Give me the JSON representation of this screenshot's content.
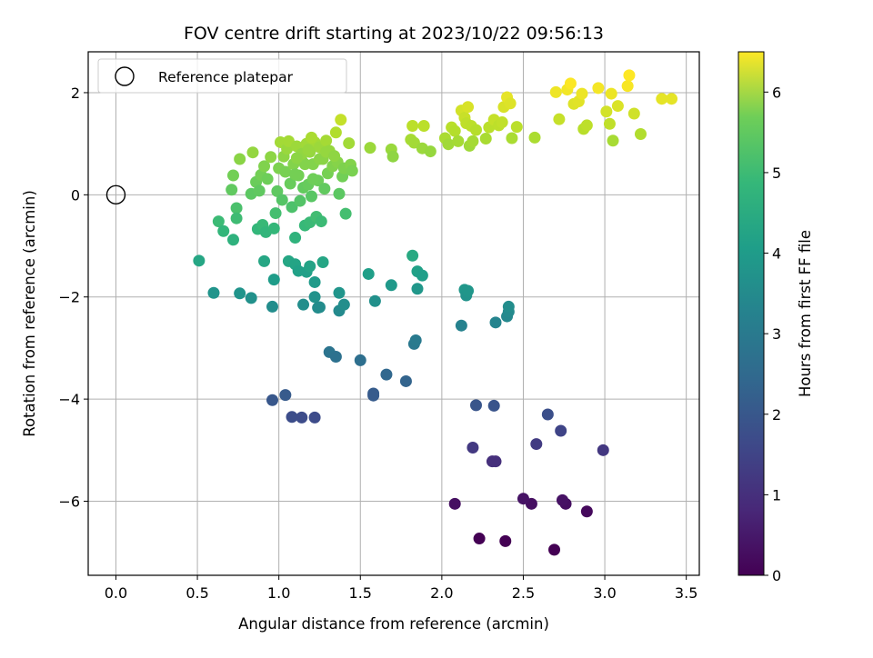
{
  "chart_data": {
    "type": "scatter",
    "title": "FOV centre drift starting at 2023/10/22 09:56:13",
    "xlabel": "Angular distance from reference (arcmin)",
    "ylabel": "Rotation from reference (arcmin)",
    "xlim": [
      -0.17,
      3.58
    ],
    "ylim": [
      -7.45,
      2.8
    ],
    "x_ticks": [
      0.0,
      0.5,
      1.0,
      1.5,
      2.0,
      2.5,
      3.0,
      3.5
    ],
    "x_tick_labels": [
      "0.0",
      "0.5",
      "1.0",
      "1.5",
      "2.0",
      "2.5",
      "3.0",
      "3.5"
    ],
    "y_ticks": [
      2,
      0,
      -2,
      -4,
      -6
    ],
    "y_tick_labels": [
      "2",
      "0",
      "−2",
      "−4",
      "−6"
    ],
    "grid": true,
    "legend": {
      "position": "top-left",
      "entries": [
        {
          "label": "Reference platepar",
          "marker": "open-circle"
        }
      ]
    },
    "reference_point": {
      "x": 0.0,
      "y": 0.0
    },
    "colorbar": {
      "label": "Hours from first FF file",
      "min": 0,
      "max": 6.5,
      "ticks": [
        0,
        1,
        2,
        3,
        4,
        5,
        6
      ],
      "tick_labels": [
        "0",
        "1",
        "2",
        "3",
        "4",
        "5",
        "6"
      ],
      "colormap": "viridis"
    },
    "series": [
      {
        "points": [
          [
            2.69,
            -6.95
          ],
          [
            2.89,
            -6.2
          ],
          [
            2.76,
            -6.05
          ],
          [
            2.74,
            -5.98
          ],
          [
            2.55,
            -6.05
          ],
          [
            2.5,
            -5.95
          ],
          [
            2.08,
            -6.05
          ],
          [
            2.39,
            -6.78
          ],
          [
            2.23,
            -6.73
          ],
          [
            2.31,
            -5.22
          ],
          [
            2.33,
            -5.22
          ],
          [
            2.19,
            -4.95
          ],
          [
            2.58,
            -4.88
          ],
          [
            2.73,
            -4.62
          ],
          [
            2.65,
            -4.3
          ],
          [
            2.99,
            -5.0
          ],
          [
            2.21,
            -4.12
          ],
          [
            2.32,
            -4.13
          ],
          [
            0.96,
            -4.02
          ],
          [
            1.04,
            -3.92
          ],
          [
            1.08,
            -4.35
          ],
          [
            1.14,
            -4.36
          ],
          [
            1.22,
            -4.36
          ],
          [
            1.31,
            -3.08
          ],
          [
            1.35,
            -3.17
          ],
          [
            1.5,
            -3.24
          ],
          [
            1.58,
            -3.89
          ],
          [
            1.58,
            -3.93
          ],
          [
            1.66,
            -3.52
          ],
          [
            1.78,
            -3.65
          ],
          [
            1.83,
            -2.92
          ],
          [
            1.84,
            -2.85
          ],
          [
            0.51,
            -1.29
          ],
          [
            0.6,
            -1.92
          ],
          [
            0.76,
            -1.93
          ],
          [
            0.83,
            -2.02
          ],
          [
            0.91,
            -1.3
          ],
          [
            0.96,
            -2.19
          ],
          [
            0.97,
            -1.66
          ],
          [
            1.06,
            -1.3
          ],
          [
            1.1,
            -1.36
          ],
          [
            1.12,
            -1.49
          ],
          [
            1.17,
            -1.51
          ],
          [
            1.19,
            -1.4
          ],
          [
            1.15,
            -2.15
          ],
          [
            1.22,
            -2.0
          ],
          [
            1.22,
            -1.71
          ],
          [
            1.24,
            -2.21
          ],
          [
            1.25,
            -2.2
          ],
          [
            1.27,
            -1.32
          ],
          [
            1.37,
            -1.92
          ],
          [
            1.37,
            -2.27
          ],
          [
            1.4,
            -2.15
          ],
          [
            1.55,
            -1.55
          ],
          [
            1.59,
            -2.08
          ],
          [
            1.69,
            -1.77
          ],
          [
            1.82,
            -1.19
          ],
          [
            1.85,
            -1.84
          ],
          [
            1.85,
            -1.5
          ],
          [
            1.88,
            -1.58
          ],
          [
            2.12,
            -2.56
          ],
          [
            2.14,
            -1.86
          ],
          [
            2.15,
            -1.97
          ],
          [
            2.16,
            -1.88
          ],
          [
            2.33,
            -2.5
          ],
          [
            2.4,
            -2.38
          ],
          [
            2.41,
            -2.29
          ],
          [
            2.41,
            -2.19
          ],
          [
            0.63,
            -0.52
          ],
          [
            0.66,
            -0.71
          ],
          [
            0.72,
            -0.88
          ],
          [
            0.74,
            -0.26
          ],
          [
            0.74,
            -0.46
          ],
          [
            0.71,
            0.1
          ],
          [
            0.72,
            0.38
          ],
          [
            0.76,
            0.7
          ],
          [
            0.83,
            0.02
          ],
          [
            0.84,
            0.83
          ],
          [
            0.86,
            0.25
          ],
          [
            0.87,
            -0.67
          ],
          [
            0.88,
            0.08
          ],
          [
            0.89,
            0.39
          ],
          [
            0.9,
            -0.59
          ],
          [
            0.91,
            0.56
          ],
          [
            0.92,
            -0.73
          ],
          [
            0.93,
            0.31
          ],
          [
            0.95,
            0.74
          ],
          [
            0.97,
            -0.66
          ],
          [
            0.98,
            -0.36
          ],
          [
            0.99,
            0.07
          ],
          [
            1.0,
            0.52
          ],
          [
            1.01,
            1.03
          ],
          [
            1.02,
            -0.1
          ],
          [
            1.03,
            0.75
          ],
          [
            1.04,
            0.45
          ],
          [
            1.05,
            0.9
          ],
          [
            1.06,
            1.05
          ],
          [
            1.07,
            0.22
          ],
          [
            1.08,
            -0.24
          ],
          [
            1.09,
            0.6
          ],
          [
            1.1,
            -0.84
          ],
          [
            1.11,
            0.95
          ],
          [
            1.12,
            0.38
          ],
          [
            1.13,
            -0.12
          ],
          [
            1.14,
            0.68
          ],
          [
            1.15,
            0.14
          ],
          [
            1.16,
            -0.6
          ],
          [
            1.17,
            1.0
          ],
          [
            1.18,
            0.2
          ],
          [
            1.19,
            -0.54
          ],
          [
            1.19,
            0.84
          ],
          [
            1.2,
            -0.03
          ],
          [
            1.21,
            0.6
          ],
          [
            1.22,
            1.03
          ],
          [
            1.23,
            -0.43
          ],
          [
            1.24,
            0.28
          ],
          [
            1.25,
            0.93
          ],
          [
            1.26,
            -0.52
          ],
          [
            1.27,
            0.7
          ],
          [
            1.28,
            0.12
          ],
          [
            1.29,
            1.06
          ],
          [
            1.3,
            0.42
          ],
          [
            1.31,
            0.86
          ],
          [
            1.33,
            0.56
          ],
          [
            1.35,
            1.22
          ],
          [
            1.36,
            0.64
          ],
          [
            1.37,
            0.02
          ],
          [
            1.38,
            1.47
          ],
          [
            1.39,
            0.36
          ],
          [
            1.4,
            0.52
          ],
          [
            1.41,
            -0.37
          ],
          [
            1.43,
            1.01
          ],
          [
            1.44,
            0.59
          ],
          [
            1.45,
            0.47
          ],
          [
            1.16,
            0.6
          ],
          [
            1.21,
            0.31
          ],
          [
            1.1,
            0.4
          ],
          [
            1.14,
            0.8
          ],
          [
            1.25,
            0.7
          ],
          [
            1.29,
            0.84
          ],
          [
            1.34,
            0.76
          ],
          [
            1.2,
            1.12
          ],
          [
            1.11,
            0.72
          ],
          [
            1.18,
            0.88
          ],
          [
            1.56,
            0.92
          ],
          [
            1.69,
            0.89
          ],
          [
            1.7,
            0.75
          ],
          [
            1.81,
            1.08
          ],
          [
            1.82,
            1.35
          ],
          [
            1.83,
            1.02
          ],
          [
            1.88,
            0.91
          ],
          [
            1.89,
            1.35
          ],
          [
            1.93,
            0.85
          ],
          [
            2.02,
            1.11
          ],
          [
            2.04,
            0.99
          ],
          [
            2.06,
            1.32
          ],
          [
            2.08,
            1.25
          ],
          [
            2.1,
            1.05
          ],
          [
            2.12,
            1.65
          ],
          [
            2.14,
            1.51
          ],
          [
            2.15,
            1.4
          ],
          [
            2.16,
            1.72
          ],
          [
            2.17,
            0.96
          ],
          [
            2.18,
            1.35
          ],
          [
            2.19,
            1.05
          ],
          [
            2.21,
            1.27
          ],
          [
            2.27,
            1.1
          ],
          [
            2.29,
            1.32
          ],
          [
            2.32,
            1.47
          ],
          [
            2.35,
            1.36
          ],
          [
            2.37,
            1.42
          ],
          [
            2.38,
            1.72
          ],
          [
            2.4,
            1.91
          ],
          [
            2.42,
            1.79
          ],
          [
            2.43,
            1.11
          ],
          [
            2.46,
            1.33
          ],
          [
            2.57,
            1.12
          ],
          [
            2.7,
            2.01
          ],
          [
            2.72,
            1.48
          ],
          [
            2.77,
            2.06
          ],
          [
            2.79,
            2.18
          ],
          [
            2.81,
            1.78
          ],
          [
            2.84,
            1.83
          ],
          [
            2.86,
            1.98
          ],
          [
            2.87,
            1.29
          ],
          [
            2.89,
            1.36
          ],
          [
            2.96,
            2.09
          ],
          [
            3.01,
            1.63
          ],
          [
            3.03,
            1.39
          ],
          [
            3.04,
            1.98
          ],
          [
            3.05,
            1.06
          ],
          [
            3.08,
            1.74
          ],
          [
            3.14,
            2.13
          ],
          [
            3.15,
            2.34
          ],
          [
            3.18,
            1.59
          ],
          [
            3.22,
            1.19
          ],
          [
            3.35,
            1.88
          ],
          [
            3.41,
            1.88
          ]
        ]
      }
    ]
  }
}
